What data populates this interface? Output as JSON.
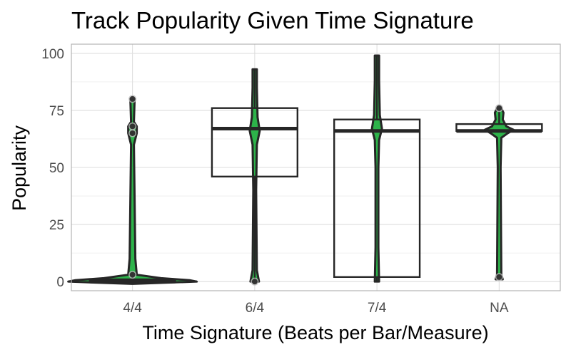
{
  "chart_data": {
    "type": "box",
    "title": "Track Popularity Given Time Signature",
    "xlabel": "Time Signature (Beats per Bar/Measure)",
    "ylabel": "Popularity",
    "categories": [
      "4/4",
      "6/4",
      "7/4",
      "NA"
    ],
    "ylim": [
      -4,
      104
    ],
    "yticks": [
      0,
      25,
      50,
      75,
      100
    ],
    "grid": true,
    "colors": {
      "violin": "#2db34a",
      "box": "#262626",
      "points": "#262626",
      "grid": "#dedede",
      "panel_border": "#b3b3b3"
    },
    "boxes": [
      {
        "category": "4/4",
        "min": 0,
        "q1": 0,
        "median": 0,
        "q3": 1,
        "max": 2,
        "outliers": [
          3,
          65,
          68,
          80
        ]
      },
      {
        "category": "6/4",
        "min": 0,
        "q1": 46,
        "median": 67,
        "q3": 76,
        "max": 93,
        "outliers": [
          0
        ]
      },
      {
        "category": "7/4",
        "min": 0,
        "q1": 2,
        "median": 66,
        "q3": 71,
        "max": 99,
        "outliers": []
      },
      {
        "category": "NA",
        "min": 66,
        "q1": 66,
        "median": 66,
        "q3": 69,
        "max": 76,
        "outliers": [
          2,
          76
        ]
      }
    ]
  }
}
